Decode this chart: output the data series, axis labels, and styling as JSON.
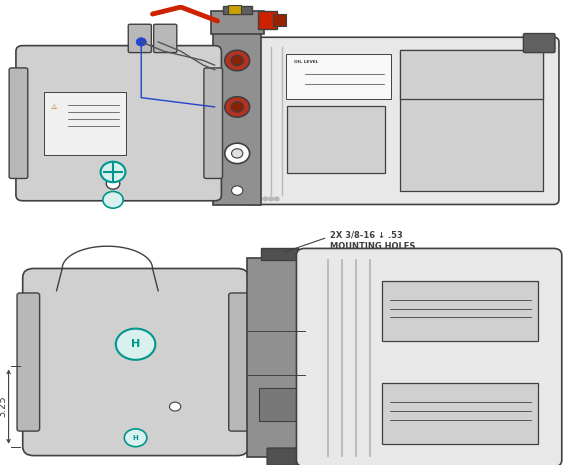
{
  "bg_color": "#ffffff",
  "lc": "#404040",
  "motor_face": "#d0d0d0",
  "motor_shade": "#b8b8b8",
  "manifold_face": "#909090",
  "tank_face": "#e8e8e8",
  "tank_shade": "#d0d0d0",
  "teal": "#00968c",
  "red_valve": "#cc2200",
  "red_port": "#b83020",
  "yellow": "#c8a000",
  "blue_wire": "#2244cc",
  "dark_conn": "#606060",
  "annotation_line1": "2X 3/8-16 ↓ .53",
  "annotation_line2": "MOUNTING HOLES",
  "dim_label": "3.25",
  "oil_level_label": "OIL LEVEL"
}
